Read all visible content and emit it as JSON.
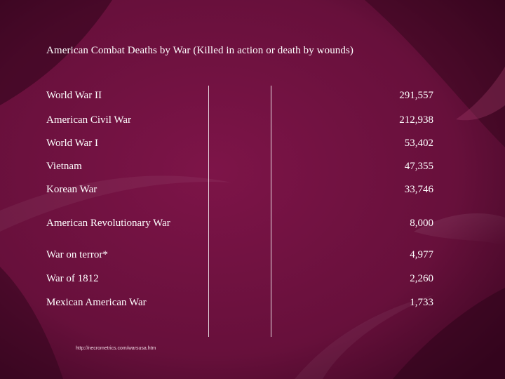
{
  "slide": {
    "title": "American Combat Deaths by War (Killed in action or death by wounds)",
    "rows": [
      {
        "war": "World War II",
        "deaths": "291,557"
      },
      {
        "war": "American Civil War",
        "deaths": "212,938"
      },
      {
        "war": "World War I",
        "deaths": "53,402"
      },
      {
        "war": "Vietnam",
        "deaths": "47,355"
      },
      {
        "war": "Korean War",
        "deaths": "33,746"
      },
      {
        "war": "American Revolutionary War",
        "deaths": "8,000"
      },
      {
        "war": "War on terror*",
        "deaths": "4,977"
      },
      {
        "war": "War of 1812",
        "deaths": "2,260"
      },
      {
        "war": "Mexican American War",
        "deaths": "1,733"
      }
    ],
    "source": "http://necrometrics.com/warsusa.htm"
  },
  "colors": {
    "background": "#6b0f3e",
    "background_dark": "#3a0620",
    "text": "#ffffff"
  }
}
